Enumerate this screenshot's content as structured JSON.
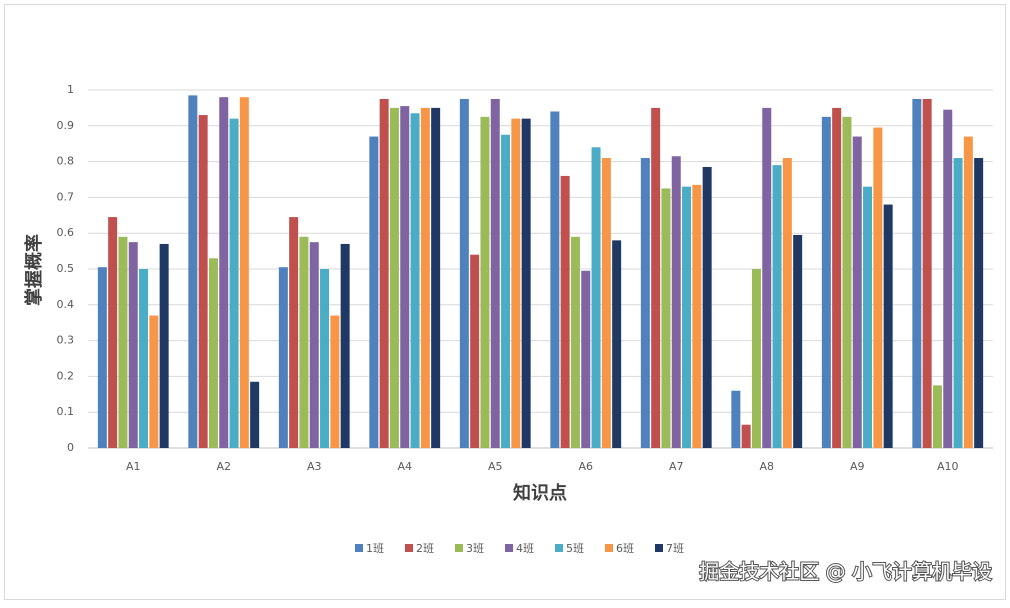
{
  "chart_data": {
    "type": "bar",
    "y_label": "掌握概率",
    "x_label": "知识点",
    "categories": [
      "A1",
      "A2",
      "A3",
      "A4",
      "A5",
      "A6",
      "A7",
      "A8",
      "A9",
      "A10"
    ],
    "series": [
      {
        "name": "1班",
        "color": "#4f81bd",
        "values": [
          0.505,
          0.985,
          0.505,
          0.87,
          0.975,
          0.94,
          0.81,
          0.16,
          0.925,
          0.975
        ]
      },
      {
        "name": "2班",
        "color": "#c0504d",
        "values": [
          0.645,
          0.93,
          0.645,
          0.975,
          0.54,
          0.76,
          0.95,
          0.065,
          0.95,
          0.975
        ]
      },
      {
        "name": "3班",
        "color": "#9bbb59",
        "values": [
          0.59,
          0.53,
          0.59,
          0.95,
          0.925,
          0.59,
          0.725,
          0.5,
          0.925,
          0.175
        ]
      },
      {
        "name": "4班",
        "color": "#8064a2",
        "values": [
          0.575,
          0.98,
          0.575,
          0.955,
          0.975,
          0.495,
          0.815,
          0.95,
          0.87,
          0.945
        ]
      },
      {
        "name": "5班",
        "color": "#4bacc6",
        "values": [
          0.5,
          0.92,
          0.5,
          0.935,
          0.875,
          0.84,
          0.73,
          0.79,
          0.73,
          0.81
        ]
      },
      {
        "name": "6班",
        "color": "#f79646",
        "values": [
          0.37,
          0.98,
          0.37,
          0.95,
          0.92,
          0.81,
          0.735,
          0.81,
          0.895,
          0.87
        ]
      },
      {
        "name": "7班",
        "color": "#1f3864",
        "values": [
          0.57,
          0.185,
          0.57,
          0.95,
          0.92,
          0.58,
          0.785,
          0.595,
          0.68,
          0.81
        ]
      }
    ],
    "ylim": [
      0,
      1
    ],
    "yticks": [
      0,
      0.1,
      0.2,
      0.3,
      0.4,
      0.5,
      0.6,
      0.7,
      0.8,
      0.9,
      1
    ],
    "grid": true,
    "legend": "bottom",
    "watermark": "掘金技术社区 @ 小飞计算机毕设"
  }
}
